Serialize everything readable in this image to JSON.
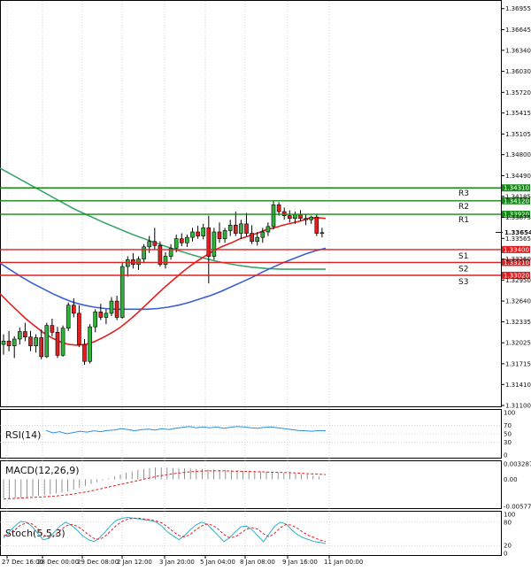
{
  "chart_data": {
    "type": "candlestick",
    "instrument_hint": "",
    "price_axis_ticks": [
      "1.36955",
      "1.36645",
      "1.36340",
      "1.36030",
      "1.35720",
      "1.35415",
      "1.35105",
      "1.34800",
      "1.34490",
      "1.34185",
      "1.33875",
      "1.33565",
      "1.33260",
      "1.32950",
      "1.32640",
      "1.32335",
      "1.32025",
      "1.31715",
      "1.31410",
      "1.31100"
    ],
    "x_axis_ticks": [
      "27 Dec 16:00",
      "28 Dec 00:00",
      "29 Dec 08:00",
      "2 Jan 12:00",
      "3 Jan 20:00",
      "5 Jan 04:00",
      "8 Jan 08:00",
      "9 Jan 16:00",
      "11 Jan 00:00"
    ],
    "price_range": [
      1.311,
      1.3703
    ],
    "current_price": {
      "label": "1.33654",
      "value": 1.33654
    },
    "levels": [
      {
        "name": "R3",
        "value": 1.3431,
        "label": "1.34310",
        "color": "#138a13"
      },
      {
        "name": "R2",
        "value": 1.3412,
        "label": "1.34120",
        "color": "#138a13"
      },
      {
        "name": "R1",
        "value": 1.3392,
        "label": "1.33920",
        "color": "#138a13"
      },
      {
        "name": "S1",
        "value": 1.334,
        "label": "1.33400",
        "color": "#e02020"
      },
      {
        "name": "S2",
        "value": 1.3321,
        "label": "1.33210",
        "color": "#e02020"
      },
      {
        "name": "S3",
        "value": 1.3302,
        "label": "1.33020",
        "color": "#e02020"
      }
    ],
    "candles": [
      [
        1.32,
        1.3215,
        1.3185,
        1.3205
      ],
      [
        1.3205,
        1.322,
        1.319,
        1.3198
      ],
      [
        1.3198,
        1.3212,
        1.318,
        1.3208
      ],
      [
        1.3208,
        1.3225,
        1.32,
        1.3219
      ],
      [
        1.3219,
        1.3232,
        1.3205,
        1.3211
      ],
      [
        1.3211,
        1.322,
        1.319,
        1.3198
      ],
      [
        1.3198,
        1.3215,
        1.3188,
        1.321
      ],
      [
        1.321,
        1.3222,
        1.3178,
        1.3182
      ],
      [
        1.3182,
        1.3232,
        1.318,
        1.3228
      ],
      [
        1.3228,
        1.3238,
        1.3212,
        1.3218
      ],
      [
        1.3218,
        1.3226,
        1.318,
        1.3184
      ],
      [
        1.3184,
        1.3228,
        1.3182,
        1.3224
      ],
      [
        1.3224,
        1.3262,
        1.322,
        1.3258
      ],
      [
        1.3258,
        1.3268,
        1.324,
        1.3246
      ],
      [
        1.3246,
        1.3258,
        1.3196,
        1.32
      ],
      [
        1.32,
        1.3208,
        1.317,
        1.3175
      ],
      [
        1.3175,
        1.323,
        1.3172,
        1.3226
      ],
      [
        1.3226,
        1.3252,
        1.3218,
        1.3248
      ],
      [
        1.3248,
        1.326,
        1.3236,
        1.324
      ],
      [
        1.324,
        1.3252,
        1.323,
        1.3246
      ],
      [
        1.3246,
        1.327,
        1.3242,
        1.3264
      ],
      [
        1.3264,
        1.3272,
        1.3236,
        1.324
      ],
      [
        1.324,
        1.332,
        1.3238,
        1.3315
      ],
      [
        1.3315,
        1.333,
        1.33,
        1.3325
      ],
      [
        1.3325,
        1.3335,
        1.3312,
        1.3318
      ],
      [
        1.3318,
        1.333,
        1.331,
        1.3326
      ],
      [
        1.3326,
        1.3348,
        1.332,
        1.3344
      ],
      [
        1.3344,
        1.336,
        1.3335,
        1.3352
      ],
      [
        1.3352,
        1.3372,
        1.334,
        1.3346
      ],
      [
        1.3346,
        1.3352,
        1.3315,
        1.3318
      ],
      [
        1.3318,
        1.3336,
        1.3312,
        1.333
      ],
      [
        1.333,
        1.3348,
        1.3325,
        1.3342
      ],
      [
        1.3342,
        1.3362,
        1.3336,
        1.3356
      ],
      [
        1.3356,
        1.3364,
        1.3345,
        1.335
      ],
      [
        1.335,
        1.3362,
        1.3344,
        1.3358
      ],
      [
        1.3358,
        1.3372,
        1.3352,
        1.3366
      ],
      [
        1.3366,
        1.3375,
        1.3356,
        1.336
      ],
      [
        1.336,
        1.3378,
        1.3355,
        1.3372
      ],
      [
        1.3372,
        1.339,
        1.329,
        1.333
      ],
      [
        1.333,
        1.3372,
        1.3325,
        1.3366
      ],
      [
        1.3366,
        1.338,
        1.335,
        1.3356
      ],
      [
        1.3356,
        1.3372,
        1.335,
        1.3368
      ],
      [
        1.3368,
        1.3384,
        1.336,
        1.3376
      ],
      [
        1.3376,
        1.3396,
        1.336,
        1.3364
      ],
      [
        1.3364,
        1.3384,
        1.3356,
        1.3378
      ],
      [
        1.3378,
        1.3394,
        1.336,
        1.3364
      ],
      [
        1.3364,
        1.3376,
        1.3348,
        1.3352
      ],
      [
        1.3352,
        1.3366,
        1.3346,
        1.3358
      ],
      [
        1.3358,
        1.3372,
        1.335,
        1.3366
      ],
      [
        1.3366,
        1.338,
        1.336,
        1.3374
      ],
      [
        1.3374,
        1.3412,
        1.337,
        1.3406
      ],
      [
        1.3406,
        1.341,
        1.339,
        1.3396
      ],
      [
        1.3396,
        1.3402,
        1.3384,
        1.339
      ],
      [
        1.339,
        1.3398,
        1.338,
        1.3386
      ],
      [
        1.3386,
        1.3396,
        1.3378,
        1.3392
      ],
      [
        1.3392,
        1.3398,
        1.3382,
        1.3386
      ],
      [
        1.3386,
        1.3392,
        1.3376,
        1.3384
      ],
      [
        1.3384,
        1.339,
        1.3378,
        1.3388
      ],
      [
        1.3388,
        1.3392,
        1.336,
        1.3364
      ],
      [
        1.3364,
        1.3372,
        1.3358,
        1.3365
      ]
    ],
    "ma_red": [
      1.3275,
      1.3262,
      1.325,
      1.3238,
      1.3228,
      1.3218,
      1.321,
      1.3204,
      1.32,
      1.3199,
      1.32,
      1.3204,
      1.321,
      1.3217,
      1.3225,
      1.3235,
      1.3246,
      1.3258,
      1.327,
      1.3282,
      1.3293,
      1.3304,
      1.3314,
      1.3323,
      1.3331,
      1.3339,
      1.3345,
      1.335,
      1.3356,
      1.336,
      1.3364,
      1.3369,
      1.3372,
      1.3376,
      1.3379,
      1.3382,
      1.3386,
      1.3387,
      1.3386
    ],
    "ma_blue": [
      1.332,
      1.331,
      1.33,
      1.3291,
      1.3283,
      1.3275,
      1.3268,
      1.3262,
      1.3258,
      1.3255,
      1.3253,
      1.3252,
      1.3252,
      1.3252,
      1.3252,
      1.3253,
      1.3255,
      1.3258,
      1.3262,
      1.3267,
      1.3272,
      1.3278,
      1.3285,
      1.3292,
      1.3299,
      1.3307,
      1.3314,
      1.3321,
      1.3327,
      1.3333,
      1.3338,
      1.3342
    ],
    "ma_green": [
      1.346,
      1.3448,
      1.3436,
      1.3424,
      1.3412,
      1.34,
      1.339,
      1.338,
      1.3371,
      1.3362,
      1.3354,
      1.3346,
      1.3339,
      1.3332,
      1.3326,
      1.3321,
      1.3317,
      1.3314,
      1.3312,
      1.3311,
      1.3311,
      1.3311,
      1.3311
    ],
    "panels": [
      {
        "name": "RSI(14)",
        "ticks": [
          "100",
          "70",
          "50",
          "30",
          "0"
        ],
        "range": [
          0,
          100
        ],
        "values": [
          58,
          52,
          55,
          50,
          53,
          56,
          54,
          57,
          55,
          58,
          59,
          62,
          60,
          57,
          60,
          61,
          59,
          62,
          60,
          63,
          65,
          67,
          64,
          66,
          64,
          66,
          63,
          65,
          67,
          66,
          64,
          63,
          65,
          66,
          64,
          62,
          60,
          58,
          57,
          56,
          58,
          57
        ]
      },
      {
        "name": "MACD(12,26,9)",
        "ticks": [
          "0.003287",
          "0.00",
          "-0.005772"
        ],
        "range": [
          -0.005772,
          0.003287
        ],
        "hist": [
          -0.004,
          -0.0041,
          -0.004,
          -0.0039,
          -0.0038,
          -0.0036,
          -0.0035,
          -0.0034,
          -0.0032,
          -0.003,
          -0.0028,
          -0.0026,
          -0.0022,
          -0.0018,
          -0.0014,
          -0.001,
          -0.0006,
          -0.0002,
          0.0002,
          0.0006,
          0.001,
          0.0014,
          0.0017,
          0.002,
          0.0022,
          0.0024,
          0.0025,
          0.0025,
          0.0025,
          0.0024,
          0.0024,
          0.0023,
          0.0023,
          0.0022,
          0.0022,
          0.0021,
          0.0021,
          0.002,
          0.002,
          0.0019,
          0.0019,
          0.0018,
          0.0018,
          0.0017,
          0.0017,
          0.0016,
          0.0016,
          0.0015,
          0.0014,
          0.0013,
          0.0012,
          0.0011,
          0.001,
          0.0008,
          0.0006
        ],
        "signal": [
          -0.0042,
          -0.004,
          -0.0038,
          -0.0036,
          -0.0032,
          -0.0026,
          -0.0018,
          -0.001,
          -0.0002,
          0.0006,
          0.0012,
          0.0016,
          0.0018,
          0.0018,
          0.0017,
          0.0016,
          0.0015,
          0.0014,
          0.0012,
          0.001
        ]
      },
      {
        "name": "Stoch(5,5,3)",
        "ticks": [
          "100",
          "80",
          "20",
          "0"
        ],
        "range": [
          0,
          100
        ],
        "k": [
          40,
          55,
          70,
          82,
          80,
          70,
          52,
          35,
          38,
          55,
          70,
          80,
          72,
          60,
          45,
          35,
          30,
          40,
          55,
          72,
          85,
          90,
          92,
          90,
          88,
          86,
          84,
          80,
          70,
          55,
          45,
          35,
          45,
          60,
          72,
          80,
          75,
          60,
          45,
          30,
          40,
          55,
          68,
          70,
          60,
          45,
          30,
          50,
          70,
          80,
          75,
          60,
          48,
          40,
          35,
          30,
          28,
          25
        ],
        "d": [
          45,
          50,
          60,
          72,
          78,
          76,
          64,
          48,
          40,
          45,
          58,
          70,
          74,
          70,
          60,
          48,
          38,
          36,
          44,
          58,
          72,
          82,
          88,
          90,
          90,
          88,
          86,
          83,
          78,
          68,
          56,
          46,
          42,
          48,
          60,
          70,
          75,
          72,
          62,
          48,
          40,
          42,
          52,
          62,
          66,
          62,
          50,
          42,
          52,
          66,
          74,
          72,
          64,
          54,
          46,
          40,
          34,
          30
        ]
      }
    ]
  }
}
